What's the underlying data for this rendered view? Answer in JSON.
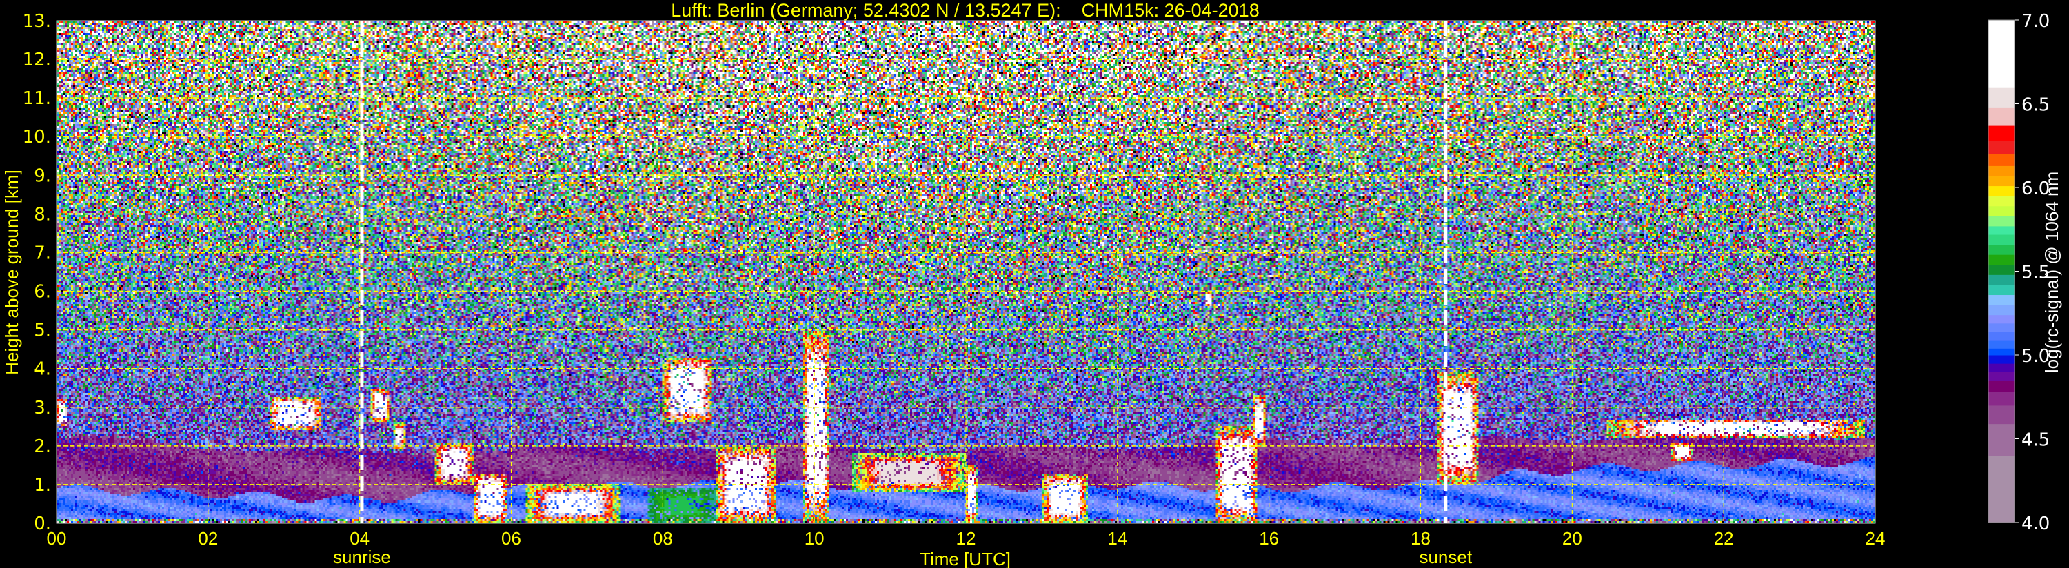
{
  "chart_data": {
    "type": "heatmap",
    "title": "Lufft: Berlin (Germany; 52.4302 N / 13.5247 E):    CHM15k: 26-04-2018",
    "xlabel": "Time [UTC]",
    "ylabel": "Height above ground [km]",
    "xlim": [
      0,
      24
    ],
    "ylim": [
      0,
      13
    ],
    "x_ticks": [
      "00",
      "02",
      "04",
      "06",
      "08",
      "10",
      "12",
      "14",
      "16",
      "18",
      "20",
      "22",
      "24"
    ],
    "y_ticks": [
      "0.",
      "1.",
      "2.",
      "3.",
      "4.",
      "5.",
      "6.",
      "7.",
      "8.",
      "9.",
      "10.",
      "11.",
      "12.",
      "13."
    ],
    "grid": true,
    "grid_color": "#ffff00",
    "markers": [
      {
        "label": "sunrise",
        "time_utc": 4.03
      },
      {
        "label": "sunset",
        "time_utc": 18.33
      }
    ],
    "colorbar": {
      "label": "log(rc-signal) @ 1064 nm",
      "range": [
        4.0,
        7.0
      ],
      "ticks": [
        "4.0",
        "4.5",
        "5.0",
        "5.5",
        "6.0",
        "6.5",
        "7.0"
      ],
      "levels": [
        {
          "from": 4.0,
          "to": 4.4,
          "color": "#a88fa8"
        },
        {
          "from": 4.4,
          "to": 4.59,
          "color": "#9e6e9e"
        },
        {
          "from": 4.59,
          "to": 4.7,
          "color": "#924a92"
        },
        {
          "from": 4.7,
          "to": 4.78,
          "color": "#8a2a8a"
        },
        {
          "from": 4.78,
          "to": 4.85,
          "color": "#7a0070"
        },
        {
          "from": 4.85,
          "to": 4.9,
          "color": "#6a0aa0"
        },
        {
          "from": 4.9,
          "to": 4.95,
          "color": "#4a00b0"
        },
        {
          "from": 4.95,
          "to": 5.0,
          "color": "#0a10e0"
        },
        {
          "from": 5.0,
          "to": 5.04,
          "color": "#0050ff"
        },
        {
          "from": 5.04,
          "to": 5.09,
          "color": "#3070ff"
        },
        {
          "from": 5.09,
          "to": 5.14,
          "color": "#5078ff"
        },
        {
          "from": 5.14,
          "to": 5.19,
          "color": "#6a88ff"
        },
        {
          "from": 5.19,
          "to": 5.24,
          "color": "#8890ff"
        },
        {
          "from": 5.24,
          "to": 5.3,
          "color": "#80a8ff"
        },
        {
          "from": 5.3,
          "to": 5.36,
          "color": "#88c0ff"
        },
        {
          "from": 5.36,
          "to": 5.42,
          "color": "#30c8b0"
        },
        {
          "from": 5.42,
          "to": 5.48,
          "color": "#20a890"
        },
        {
          "from": 5.48,
          "to": 5.54,
          "color": "#109030"
        },
        {
          "from": 5.54,
          "to": 5.6,
          "color": "#20a810"
        },
        {
          "from": 5.6,
          "to": 5.66,
          "color": "#20c050"
        },
        {
          "from": 5.66,
          "to": 5.72,
          "color": "#30d880"
        },
        {
          "from": 5.72,
          "to": 5.77,
          "color": "#40e8a0"
        },
        {
          "from": 5.77,
          "to": 5.83,
          "color": "#88f880"
        },
        {
          "from": 5.83,
          "to": 5.89,
          "color": "#c8ff40"
        },
        {
          "from": 5.89,
          "to": 5.95,
          "color": "#e0ff40"
        },
        {
          "from": 5.95,
          "to": 6.01,
          "color": "#ffe800"
        },
        {
          "from": 6.01,
          "to": 6.07,
          "color": "#ffb000"
        },
        {
          "from": 6.07,
          "to": 6.13,
          "color": "#ff9800"
        },
        {
          "from": 6.13,
          "to": 6.2,
          "color": "#ff6000"
        },
        {
          "from": 6.2,
          "to": 6.28,
          "color": "#f02020"
        },
        {
          "from": 6.28,
          "to": 6.37,
          "color": "#ff0000"
        },
        {
          "from": 6.37,
          "to": 6.48,
          "color": "#f0c0c0"
        },
        {
          "from": 6.48,
          "to": 6.6,
          "color": "#ece0e0"
        },
        {
          "from": 6.6,
          "to": 7.0,
          "color": "#ffffff"
        }
      ]
    },
    "mixing_layer_top_km": [
      [
        0,
        0.9
      ],
      [
        2,
        0.75
      ],
      [
        4,
        0.6
      ],
      [
        6,
        0.9
      ],
      [
        8,
        1.0
      ],
      [
        10,
        1.0
      ],
      [
        12,
        0.9
      ],
      [
        14,
        1.0
      ],
      [
        16,
        0.9
      ],
      [
        18,
        1.0
      ],
      [
        20,
        1.4
      ],
      [
        22,
        1.5
      ],
      [
        24,
        1.6
      ]
    ],
    "residual_layer_top_km": [
      [
        0,
        2.2
      ],
      [
        2,
        2.0
      ],
      [
        4,
        1.8
      ],
      [
        6,
        1.9
      ],
      [
        8,
        2.0
      ],
      [
        10,
        2.0
      ],
      [
        12,
        1.9
      ],
      [
        14,
        2.0
      ],
      [
        16,
        2.1
      ],
      [
        18,
        2.1
      ],
      [
        20,
        2.2
      ],
      [
        22,
        2.3
      ],
      [
        24,
        2.2
      ]
    ],
    "cloud_features": [
      {
        "time_utc": [
          0.0,
          0.15
        ],
        "height_km": [
          2.5,
          3.2
        ],
        "peak": 7.0
      },
      {
        "time_utc": [
          2.8,
          3.5
        ],
        "height_km": [
          2.4,
          3.25
        ],
        "peak": 7.0
      },
      {
        "time_utc": [
          4.15,
          4.4
        ],
        "height_km": [
          2.6,
          3.5
        ],
        "peak": 6.8
      },
      {
        "time_utc": [
          4.45,
          4.6
        ],
        "height_km": [
          1.9,
          2.6
        ],
        "peak": 6.6
      },
      {
        "time_utc": [
          5.0,
          5.5
        ],
        "height_km": [
          1.0,
          2.1
        ],
        "peak": 6.8
      },
      {
        "time_utc": [
          5.5,
          5.95
        ],
        "height_km": [
          0.0,
          1.3
        ],
        "peak": 7.0
      },
      {
        "time_utc": [
          6.2,
          7.45
        ],
        "height_km": [
          0.0,
          1.0
        ],
        "peak": 6.6
      },
      {
        "time_utc": [
          7.8,
          8.7
        ],
        "height_km": [
          0.0,
          0.9
        ],
        "peak": 5.6
      },
      {
        "time_utc": [
          8.0,
          8.65
        ],
        "height_km": [
          2.6,
          4.3
        ],
        "peak": 7.0
      },
      {
        "time_utc": [
          8.7,
          9.5
        ],
        "height_km": [
          0.0,
          2.0
        ],
        "peak": 6.9
      },
      {
        "time_utc": [
          9.85,
          10.2
        ],
        "height_km": [
          0.0,
          5.0
        ],
        "peak": 7.0
      },
      {
        "time_utc": [
          10.5,
          12.0
        ],
        "height_km": [
          0.8,
          1.8
        ],
        "peak": 6.5
      },
      {
        "time_utc": [
          12.0,
          12.15
        ],
        "height_km": [
          0.0,
          1.5
        ],
        "peak": 6.8
      },
      {
        "time_utc": [
          13.0,
          13.6
        ],
        "height_km": [
          0.0,
          1.3
        ],
        "peak": 6.8
      },
      {
        "time_utc": [
          15.15,
          15.25
        ],
        "height_km": [
          5.6,
          6.0
        ],
        "peak": 6.8
      },
      {
        "time_utc": [
          15.3,
          15.85
        ],
        "height_km": [
          0.0,
          2.5
        ],
        "peak": 7.0
      },
      {
        "time_utc": [
          15.8,
          15.95
        ],
        "height_km": [
          2.0,
          3.3
        ],
        "peak": 6.9
      },
      {
        "time_utc": [
          18.22,
          18.76
        ],
        "height_km": [
          1.0,
          3.9
        ],
        "peak": 7.0
      },
      {
        "time_utc": [
          20.46,
          23.85
        ],
        "height_km": [
          2.2,
          2.7
        ],
        "peak": 6.9
      },
      {
        "time_utc": [
          21.3,
          21.6
        ],
        "height_km": [
          1.6,
          2.1
        ],
        "peak": 6.8
      }
    ]
  }
}
